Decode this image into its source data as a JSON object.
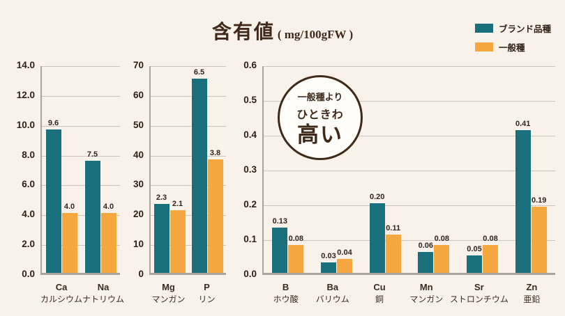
{
  "title": {
    "main": "含有値",
    "unit": "( mg/100gFW )"
  },
  "legend": [
    {
      "label": "ブランド品種",
      "color": "#1A6F7D"
    },
    {
      "label": "一般種",
      "color": "#F6A840"
    }
  ],
  "badge": {
    "line1": "一般種より",
    "line2": "ひときわ",
    "line3": "高い"
  },
  "colors": {
    "background": "#F8F2EB",
    "brand_series": "#1A6F7D",
    "general_series": "#F6A840",
    "text_dark": "#3A2B1E",
    "gridline": "#CCC5BD",
    "axis_line": "#ABA49B",
    "badge_border": "#3F2A1A"
  },
  "chart_data": [
    {
      "type": "bar",
      "title": "",
      "xlabel": "",
      "ylabel": "",
      "ylim": [
        0,
        14
      ],
      "ytick_step": 2,
      "grid": true,
      "legend_position": "top-right",
      "yticks": [
        "14.0",
        "12.0",
        "10.0",
        "8.0",
        "6.0",
        "4.0",
        "2.0",
        "0.0"
      ],
      "categories": [
        {
          "symbol": "Ca",
          "name": "カルシウム"
        },
        {
          "symbol": "Na",
          "name": "ナトリウム"
        }
      ],
      "series": [
        {
          "name": "ブランド品種",
          "values": [
            9.6,
            7.5
          ],
          "labels": [
            "9.6",
            "7.5"
          ]
        },
        {
          "name": "一般種",
          "values": [
            4.0,
            4.0
          ],
          "labels": [
            "4.0",
            "4.0"
          ]
        }
      ]
    },
    {
      "type": "bar",
      "title": "",
      "xlabel": "",
      "ylabel": "",
      "ylim": [
        0,
        70
      ],
      "ytick_step": 10,
      "grid": true,
      "yticks": [
        "70",
        "60",
        "50",
        "40",
        "30",
        "20",
        "10",
        "0"
      ],
      "categories": [
        {
          "symbol": "Mg",
          "name": "マンガン"
        },
        {
          "symbol": "P",
          "name": "リン"
        }
      ],
      "series": [
        {
          "name": "ブランド品種",
          "values": [
            2.3,
            6.5
          ],
          "plotted": [
            23,
            65
          ],
          "labels": [
            "2.3",
            "6.5"
          ]
        },
        {
          "name": "一般種",
          "values": [
            2.1,
            3.8
          ],
          "plotted": [
            21,
            38
          ],
          "labels": [
            "2.1",
            "3.8"
          ]
        }
      ]
    },
    {
      "type": "bar",
      "title": "",
      "xlabel": "",
      "ylabel": "",
      "ylim": [
        0,
        0.6
      ],
      "ytick_step": 0.1,
      "grid": true,
      "yticks": [
        "0.6",
        "0.5",
        "0.4",
        "0.3",
        "0.2",
        "0.1",
        "0.0"
      ],
      "categories": [
        {
          "symbol": "B",
          "name": "ホウ酸"
        },
        {
          "symbol": "Ba",
          "name": "バリウム"
        },
        {
          "symbol": "Cu",
          "name": "銅"
        },
        {
          "symbol": "Mn",
          "name": "マンガン"
        },
        {
          "symbol": "Sr",
          "name": "ストロンチウム"
        },
        {
          "symbol": "Zn",
          "name": "亜鉛"
        }
      ],
      "series": [
        {
          "name": "ブランド品種",
          "values": [
            0.13,
            0.03,
            0.2,
            0.06,
            0.05,
            0.41
          ],
          "labels": [
            "0.13",
            "0.03",
            "0.20",
            "0.06",
            "0.05",
            "0.41"
          ]
        },
        {
          "name": "一般種",
          "values": [
            0.08,
            0.04,
            0.11,
            0.08,
            0.08,
            0.19
          ],
          "labels": [
            "0.08",
            "0.04",
            "0.11",
            "0.08",
            "0.08",
            "0.19"
          ]
        }
      ]
    }
  ]
}
